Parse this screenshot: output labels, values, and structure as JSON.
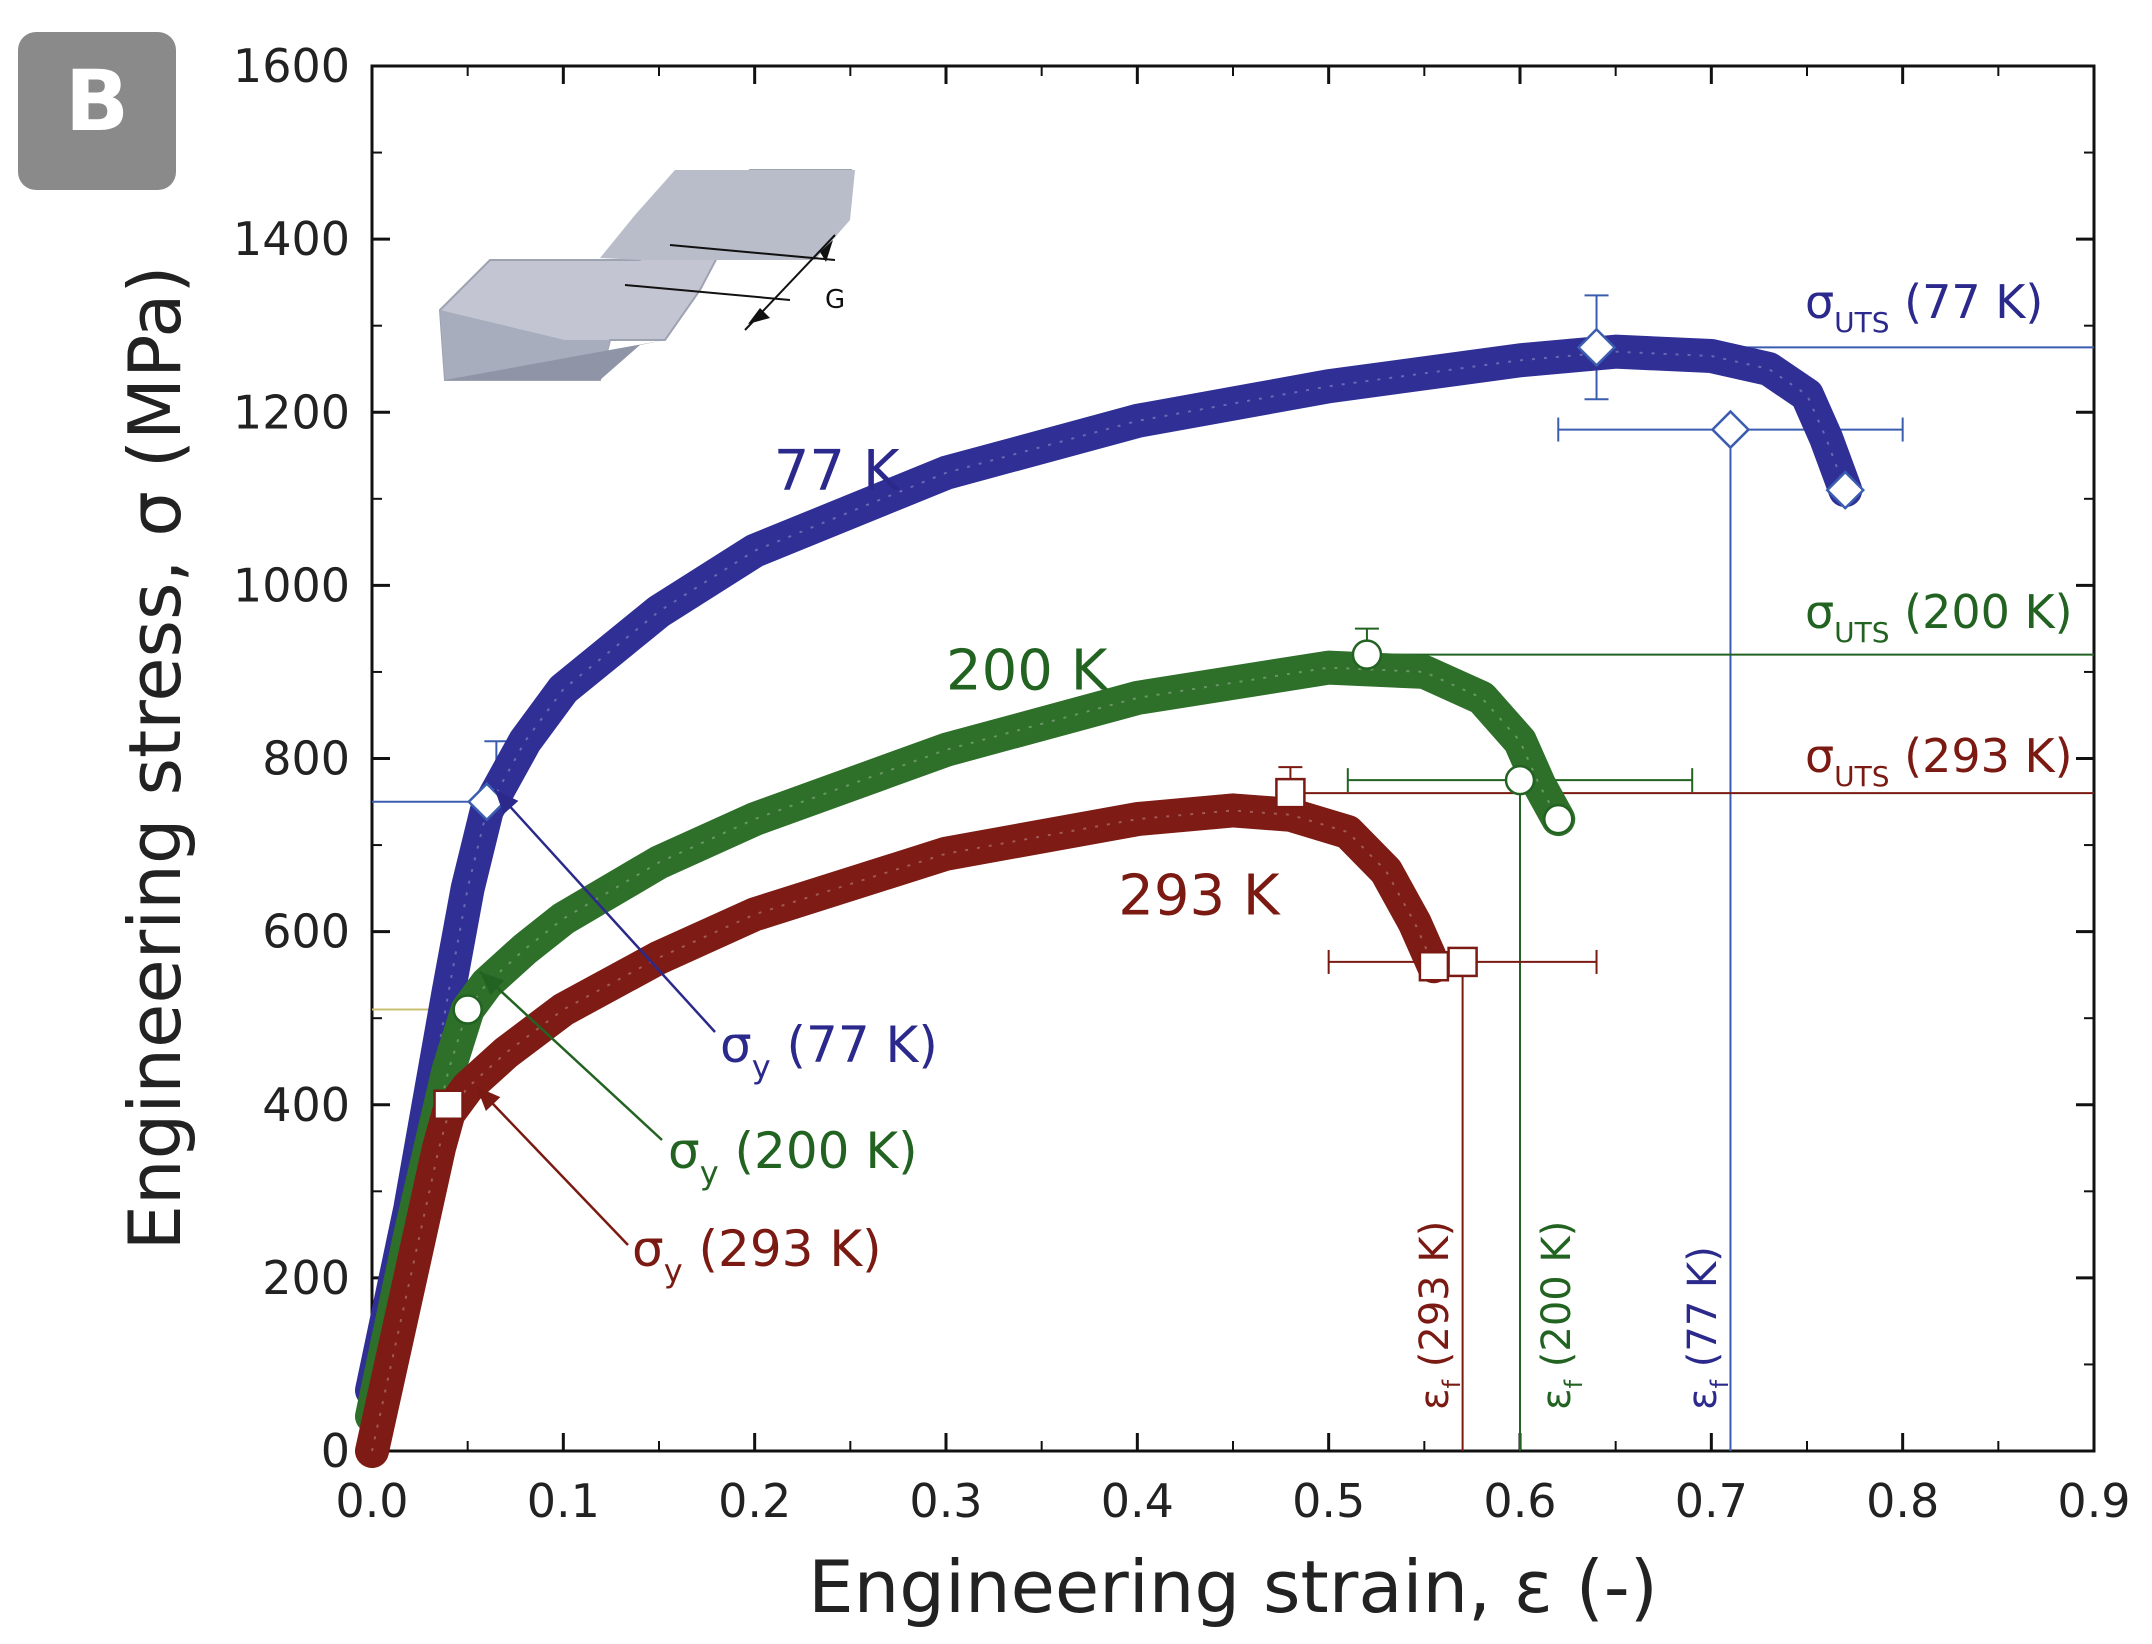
{
  "panel_label": "B",
  "inset": {
    "gauge_label": "G"
  },
  "colors": {
    "c77": "#2b2a8c",
    "c200": "#226322",
    "c293": "#7a1a12",
    "line77": "#3b5db0",
    "fill77": "#2f2f96",
    "fill200": "#2e6f2a",
    "fill293": "#7d1b14"
  },
  "chart_data": {
    "type": "line",
    "title": "",
    "xlabel": "Engineering strain, ε (-)",
    "ylabel": "Engineering stress, σ (MPa)",
    "xlim": [
      0,
      0.9
    ],
    "ylim": [
      0,
      1600
    ],
    "xticks": [
      0.0,
      0.1,
      0.2,
      0.3,
      0.4,
      0.5,
      0.6,
      0.7,
      0.8,
      0.9
    ],
    "xtick_labels": [
      "0.0",
      "0.1",
      "0.2",
      "0.3",
      "0.4",
      "0.5",
      "0.6",
      "0.7",
      "0.8",
      "0.9"
    ],
    "yticks": [
      0,
      200,
      400,
      600,
      800,
      1000,
      1200,
      1400,
      1600
    ],
    "ytick_labels": [
      "0",
      "200",
      "400",
      "600",
      "800",
      "1000",
      "1200",
      "1400",
      "1600"
    ],
    "series": [
      {
        "name": "77 K",
        "key": "s77",
        "color_key": "fill77",
        "marker": "diamond",
        "x": [
          0.0,
          0.02,
          0.04,
          0.05,
          0.06,
          0.08,
          0.1,
          0.15,
          0.2,
          0.3,
          0.4,
          0.5,
          0.6,
          0.65,
          0.7,
          0.73,
          0.75,
          0.76,
          0.77
        ],
        "y": [
          70,
          280,
          530,
          650,
          740,
          820,
          880,
          970,
          1040,
          1130,
          1190,
          1230,
          1260,
          1270,
          1265,
          1250,
          1220,
          1170,
          1110
        ],
        "yield": {
          "x": 0.06,
          "y": 750,
          "label": "σy (77 K)",
          "err": 70
        },
        "uts": {
          "x": 0.64,
          "y": 1275,
          "label": "σUTS (77 K)",
          "err": 60
        },
        "fracture": {
          "x": 0.71,
          "y": 1180,
          "label": "εf (77 K)",
          "xerr": [
            0.62,
            0.8
          ]
        }
      },
      {
        "name": "200 K",
        "key": "s200",
        "color_key": "fill200",
        "marker": "circle",
        "x": [
          0.0,
          0.02,
          0.04,
          0.05,
          0.06,
          0.08,
          0.1,
          0.15,
          0.2,
          0.3,
          0.4,
          0.5,
          0.55,
          0.58,
          0.6,
          0.61,
          0.62
        ],
        "y": [
          40,
          250,
          440,
          510,
          540,
          580,
          615,
          680,
          730,
          810,
          870,
          905,
          900,
          870,
          820,
          770,
          730
        ],
        "yield": {
          "x": 0.05,
          "y": 510,
          "label": "σy (200 K)"
        },
        "uts": {
          "x": 0.52,
          "y": 920,
          "label": "σUTS (200 K)",
          "err": 30
        },
        "fracture": {
          "x": 0.6,
          "y": 775,
          "label": "εf (200 K)",
          "xerr": [
            0.51,
            0.69
          ]
        }
      },
      {
        "name": "293 K",
        "key": "s293",
        "color_key": "fill293",
        "marker": "square",
        "x": [
          0.0,
          0.02,
          0.035,
          0.04,
          0.05,
          0.07,
          0.1,
          0.15,
          0.2,
          0.3,
          0.4,
          0.45,
          0.48,
          0.51,
          0.53,
          0.545,
          0.555
        ],
        "y": [
          0,
          200,
          350,
          390,
          420,
          460,
          510,
          570,
          620,
          690,
          730,
          740,
          735,
          715,
          670,
          610,
          560
        ],
        "yield": {
          "x": 0.04,
          "y": 400,
          "label": "σy (293 K)"
        },
        "uts": {
          "x": 0.48,
          "y": 760,
          "label": "σUTS (293 K)",
          "err": 30
        },
        "fracture": {
          "x": 0.57,
          "y": 565,
          "label": "εf (293 K)",
          "xerr": [
            0.5,
            0.64
          ]
        }
      }
    ],
    "annotations": [
      {
        "text": "77 K",
        "x": 0.21,
        "y": 1110,
        "series": "s77"
      },
      {
        "text": "200 K",
        "x": 0.3,
        "y": 880,
        "series": "s200"
      },
      {
        "text": "293 K",
        "x": 0.39,
        "y": 620,
        "series": "s293"
      }
    ]
  },
  "labels": {
    "uts77_sigma": "σ",
    "uts77_sub": "UTS",
    "uts77_rest": " (77 K)",
    "uts200_sigma": "σ",
    "uts200_sub": "UTS",
    "uts200_rest": " (200 K)",
    "uts293_sigma": "σ",
    "uts293_sub": "UTS",
    "uts293_rest": " (293 K)",
    "sy77_sigma": "σ",
    "sy77_sub": "y",
    "sy77_rest": " (77 K)",
    "sy200_sigma": "σ",
    "sy200_sub": "y",
    "sy200_rest": " (200 K)",
    "sy293_sigma": "σ",
    "sy293_sub": "y",
    "sy293_rest": " (293 K)",
    "ef293_eps": "ε",
    "ef293_sub": "f",
    "ef293_rest": " (293 K)",
    "ef200_eps": "ε",
    "ef200_sub": "f",
    "ef200_rest": " (200 K)",
    "ef77_eps": "ε",
    "ef77_sub": "f",
    "ef77_rest": " (77 K)"
  }
}
